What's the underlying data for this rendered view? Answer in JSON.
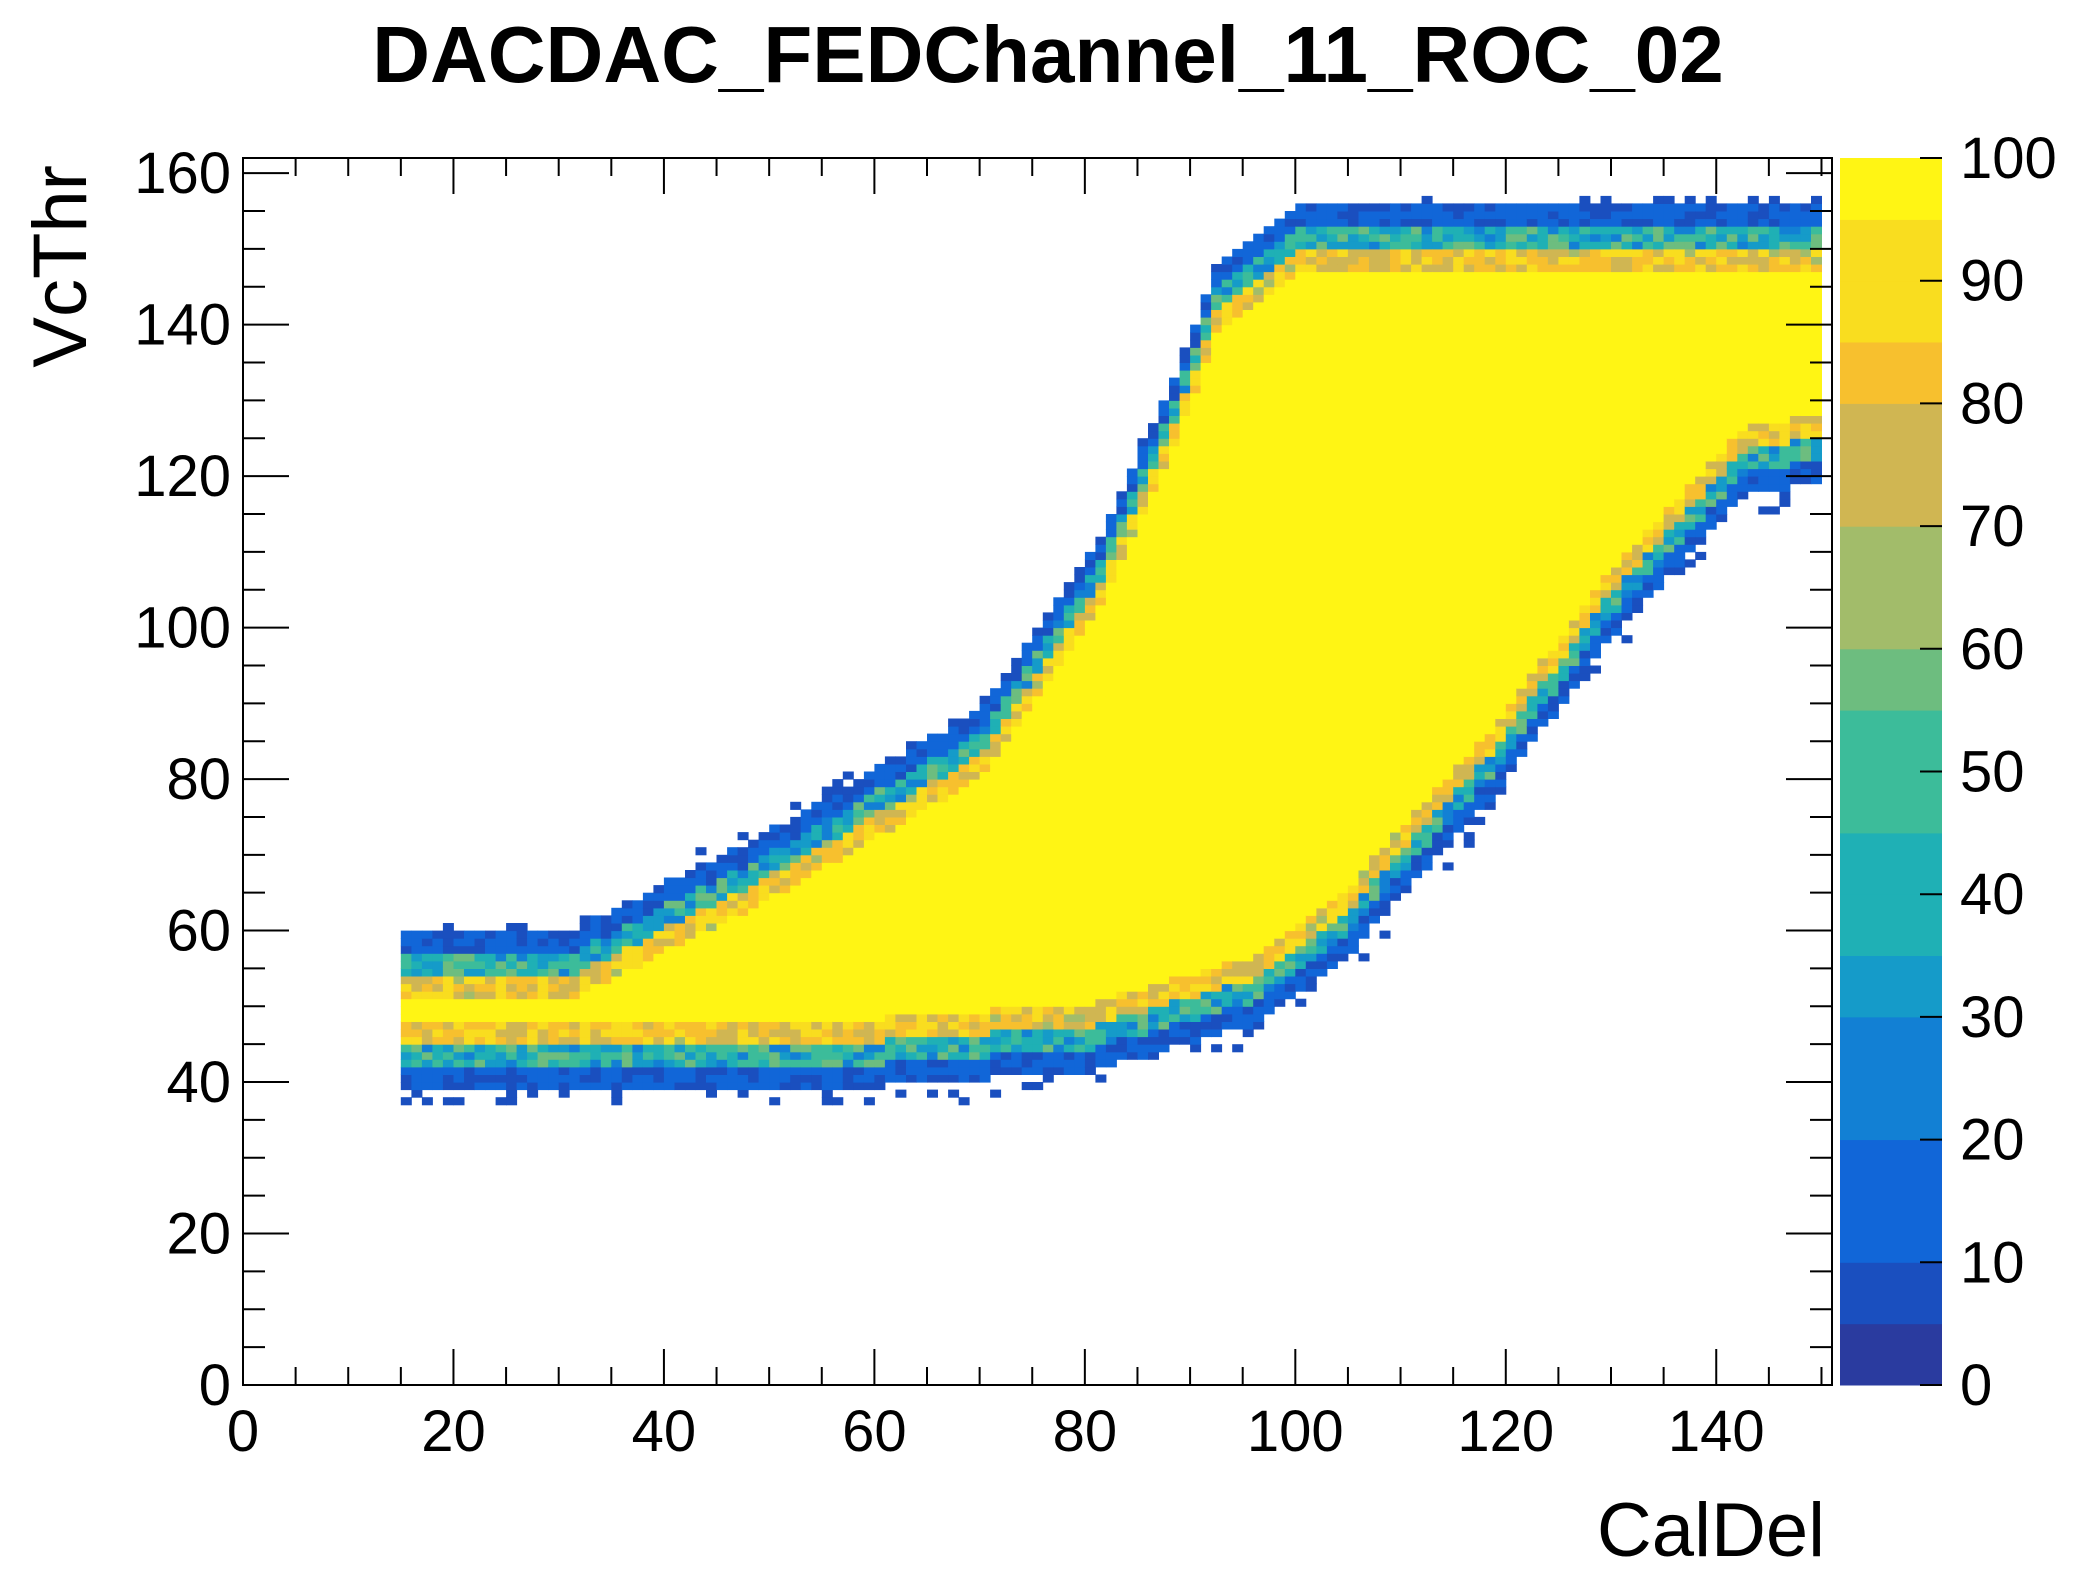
{
  "chart_data": {
    "type": "heatmap",
    "title": "DACDAC_FEDChannel_11_ROC_02",
    "xlabel": "CalDel",
    "ylabel": "VcThr",
    "xlim": [
      0,
      151
    ],
    "ylim": [
      0,
      162
    ],
    "x_ticks": [
      "0",
      "20",
      "40",
      "60",
      "80",
      "100",
      "120",
      "140"
    ],
    "y_ticks": [
      "0",
      "20",
      "40",
      "60",
      "80",
      "100",
      "120",
      "140",
      "160"
    ],
    "z_range": [
      0,
      100
    ],
    "colorbar_ticks": [
      "0",
      "10",
      "20",
      "30",
      "40",
      "50",
      "60",
      "70",
      "80",
      "90",
      "100"
    ],
    "colormap": [
      "#2a3b9f",
      "#1a4fbf",
      "#1166d8",
      "#1280d4",
      "#159bc9",
      "#1fb0b5",
      "#3cbc9a",
      "#6dbd7f",
      "#a2bc6a",
      "#d0b652",
      "#f7c02e",
      "#f9dd1f",
      "#fff514"
    ],
    "region": {
      "description_points": "efficiency plateau ~100 inside region, falling to ~0-20 at edges",
      "upper_edge": [
        [
          30,
          58
        ],
        [
          50,
          72
        ],
        [
          70,
          88
        ],
        [
          80,
          108
        ],
        [
          87,
          128
        ],
        [
          92,
          146
        ],
        [
          100,
          154
        ],
        [
          150,
          154
        ]
      ],
      "lower_edge": [
        [
          17,
          40
        ],
        [
          40,
          40
        ],
        [
          60,
          40
        ],
        [
          80,
          42
        ],
        [
          95,
          48
        ],
        [
          105,
          58
        ],
        [
          118,
          78
        ],
        [
          130,
          100
        ],
        [
          142,
          118
        ],
        [
          150,
          120
        ]
      ]
    }
  }
}
